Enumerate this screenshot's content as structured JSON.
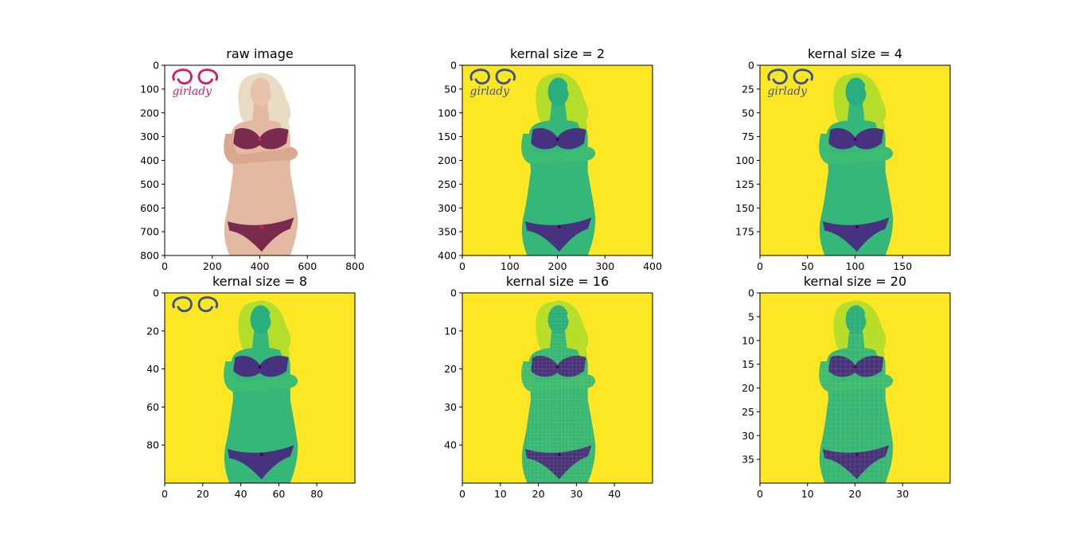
{
  "figure": {
    "background": "#ffffff",
    "colormap": [
      "#440154",
      "#3b528b",
      "#21918c",
      "#5ec962",
      "#fde725"
    ]
  },
  "chart_data": [
    {
      "type": "heatmap",
      "title": "raw image",
      "image_kind": "raw",
      "xlim": [
        0,
        800
      ],
      "ylim": [
        800,
        0
      ],
      "xticks": [
        0,
        200,
        400,
        600,
        800
      ],
      "yticks": [
        0,
        100,
        200,
        300,
        400,
        500,
        600,
        700,
        800
      ],
      "logo_text": "girlady"
    },
    {
      "type": "heatmap",
      "title": "kernal size = 2",
      "image_kind": "viridis",
      "grid_size": 400,
      "xlim": [
        0,
        400
      ],
      "ylim": [
        400,
        0
      ],
      "xticks": [
        0,
        100,
        200,
        300,
        400
      ],
      "yticks": [
        0,
        50,
        100,
        150,
        200,
        250,
        300,
        350,
        400
      ],
      "logo_text": "girlady"
    },
    {
      "type": "heatmap",
      "title": "kernal size = 4",
      "image_kind": "viridis",
      "grid_size": 200,
      "xlim": [
        0,
        200
      ],
      "ylim": [
        200,
        0
      ],
      "xticks": [
        0,
        50,
        100,
        150
      ],
      "yticks": [
        0,
        25,
        50,
        75,
        100,
        125,
        150,
        175
      ],
      "logo_text": "girlady"
    },
    {
      "type": "heatmap",
      "title": "kernal size = 8",
      "image_kind": "viridis",
      "grid_size": 100,
      "xlim": [
        0,
        100
      ],
      "ylim": [
        100,
        0
      ],
      "xticks": [
        0,
        20,
        40,
        60,
        80
      ],
      "yticks": [
        0,
        20,
        40,
        60,
        80
      ],
      "logo_text": ""
    },
    {
      "type": "heatmap",
      "title": "kernal size = 16",
      "image_kind": "viridis",
      "grid_size": 50,
      "xlim": [
        0,
        50
      ],
      "ylim": [
        50,
        0
      ],
      "xticks": [
        0,
        10,
        20,
        30,
        40
      ],
      "yticks": [
        0,
        10,
        20,
        30,
        40
      ],
      "logo_text": ""
    },
    {
      "type": "heatmap",
      "title": "kernal size = 20",
      "image_kind": "viridis",
      "grid_size": 40,
      "xlim": [
        0,
        40
      ],
      "ylim": [
        40,
        0
      ],
      "xticks": [
        0,
        10,
        20,
        30
      ],
      "yticks": [
        0,
        5,
        10,
        15,
        20,
        25,
        30,
        35
      ],
      "logo_text": ""
    }
  ]
}
